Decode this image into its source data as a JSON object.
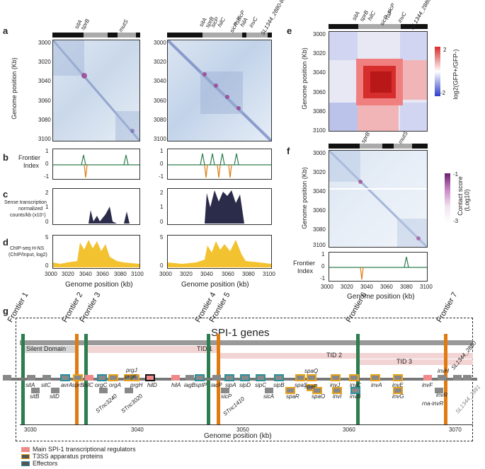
{
  "panels": {
    "a": "a",
    "b": "b",
    "c": "c",
    "d": "d",
    "e": "e",
    "f": "f",
    "g": "g"
  },
  "gene_labels_left": [
    "sitA",
    "sprB",
    "mutS"
  ],
  "gene_labels_right": [
    "sitA",
    "sprB",
    "sicP",
    "hilC",
    "sicP_sicP",
    "rtsP",
    "hilA",
    "invC",
    "SL1344_2880-81"
  ],
  "axes": {
    "genome_kb": "Genome position (Kb)",
    "genome_kb_lower": "Genome position (kb)",
    "frontier": "Frontier\nIndex",
    "frontier_line1": "Frontier",
    "frontier_line2": "Index",
    "sense_l1": "Sense transcription",
    "sense_l2": "normalized",
    "sense_l3": "counts/kb (x10⁵)",
    "chip_l1": "ChIP-seq H-NS",
    "chip_l2": "(ChIP/Input, log2)",
    "log2": "log2(GFP+/GFP-)",
    "contact_l1": "Contact score",
    "contact_l2": "(Log10)"
  },
  "ticks": {
    "y_hic": [
      "3000",
      "3020",
      "3040",
      "3060",
      "3080",
      "3100"
    ],
    "x_tracks": [
      "3000",
      "3020",
      "3040",
      "3060",
      "3080",
      "3100"
    ],
    "frontier_y": [
      "1",
      "0",
      "-1"
    ],
    "sense_y": [
      "2",
      "1",
      "0"
    ],
    "chip_y": [
      "5",
      "0"
    ],
    "e_scale": [
      "2",
      "0",
      "-2"
    ],
    "f_scale": [
      "-1",
      "-3"
    ]
  },
  "g": {
    "title": "SPI-1 genes",
    "frontiers": [
      "Frontier 1",
      "Frontier 2",
      "Frontier 3",
      "Frontier 4",
      "Frontier 5",
      "Frontier 6",
      "Frontier 7"
    ],
    "domains": [
      "Silent Domain",
      "TID 1",
      "TID 2",
      "TID 3"
    ],
    "x_ticks": [
      "3030",
      "3040",
      "3050",
      "3060",
      "3070"
    ],
    "xlabel": "Genome position (kb)",
    "genes_top": [
      "sitA",
      "sitC",
      "avrA",
      "sprB",
      "hilC",
      "orgC",
      "orgA",
      "prgK",
      "prgJ",
      "prgH",
      "hilD",
      "hilA",
      "iagB",
      "sptP",
      "iacP",
      "sipA",
      "sipD",
      "sipC",
      "sipB",
      "spaS",
      "spaQ",
      "invJ",
      "invC",
      "invA",
      "invE",
      "invF",
      "invH",
      "SL1344_2880"
    ],
    "genes_bottom": [
      "sitB",
      "sitD",
      "STnc3240",
      "STnc3020",
      "sicP",
      "STnc1410",
      "sicA",
      "spaR",
      "spaP",
      "spaO",
      "invI",
      "invB",
      "invG",
      "invR",
      "rna-invR",
      "SL1344_2881"
    ],
    "legend": [
      {
        "label": "Main SPI-1 transcriptional regulators",
        "color": "#f08a8a"
      },
      {
        "label": "T3SS apparatus proteins",
        "color": "#e8a21a"
      },
      {
        "label": "Effectors",
        "color": "#2a8f9a"
      }
    ]
  },
  "colors": {
    "frontier_green": "#2e7d4f",
    "frontier_orange": "#e07b12",
    "chip": "#f2c230",
    "sense": "#2b2b4a"
  }
}
